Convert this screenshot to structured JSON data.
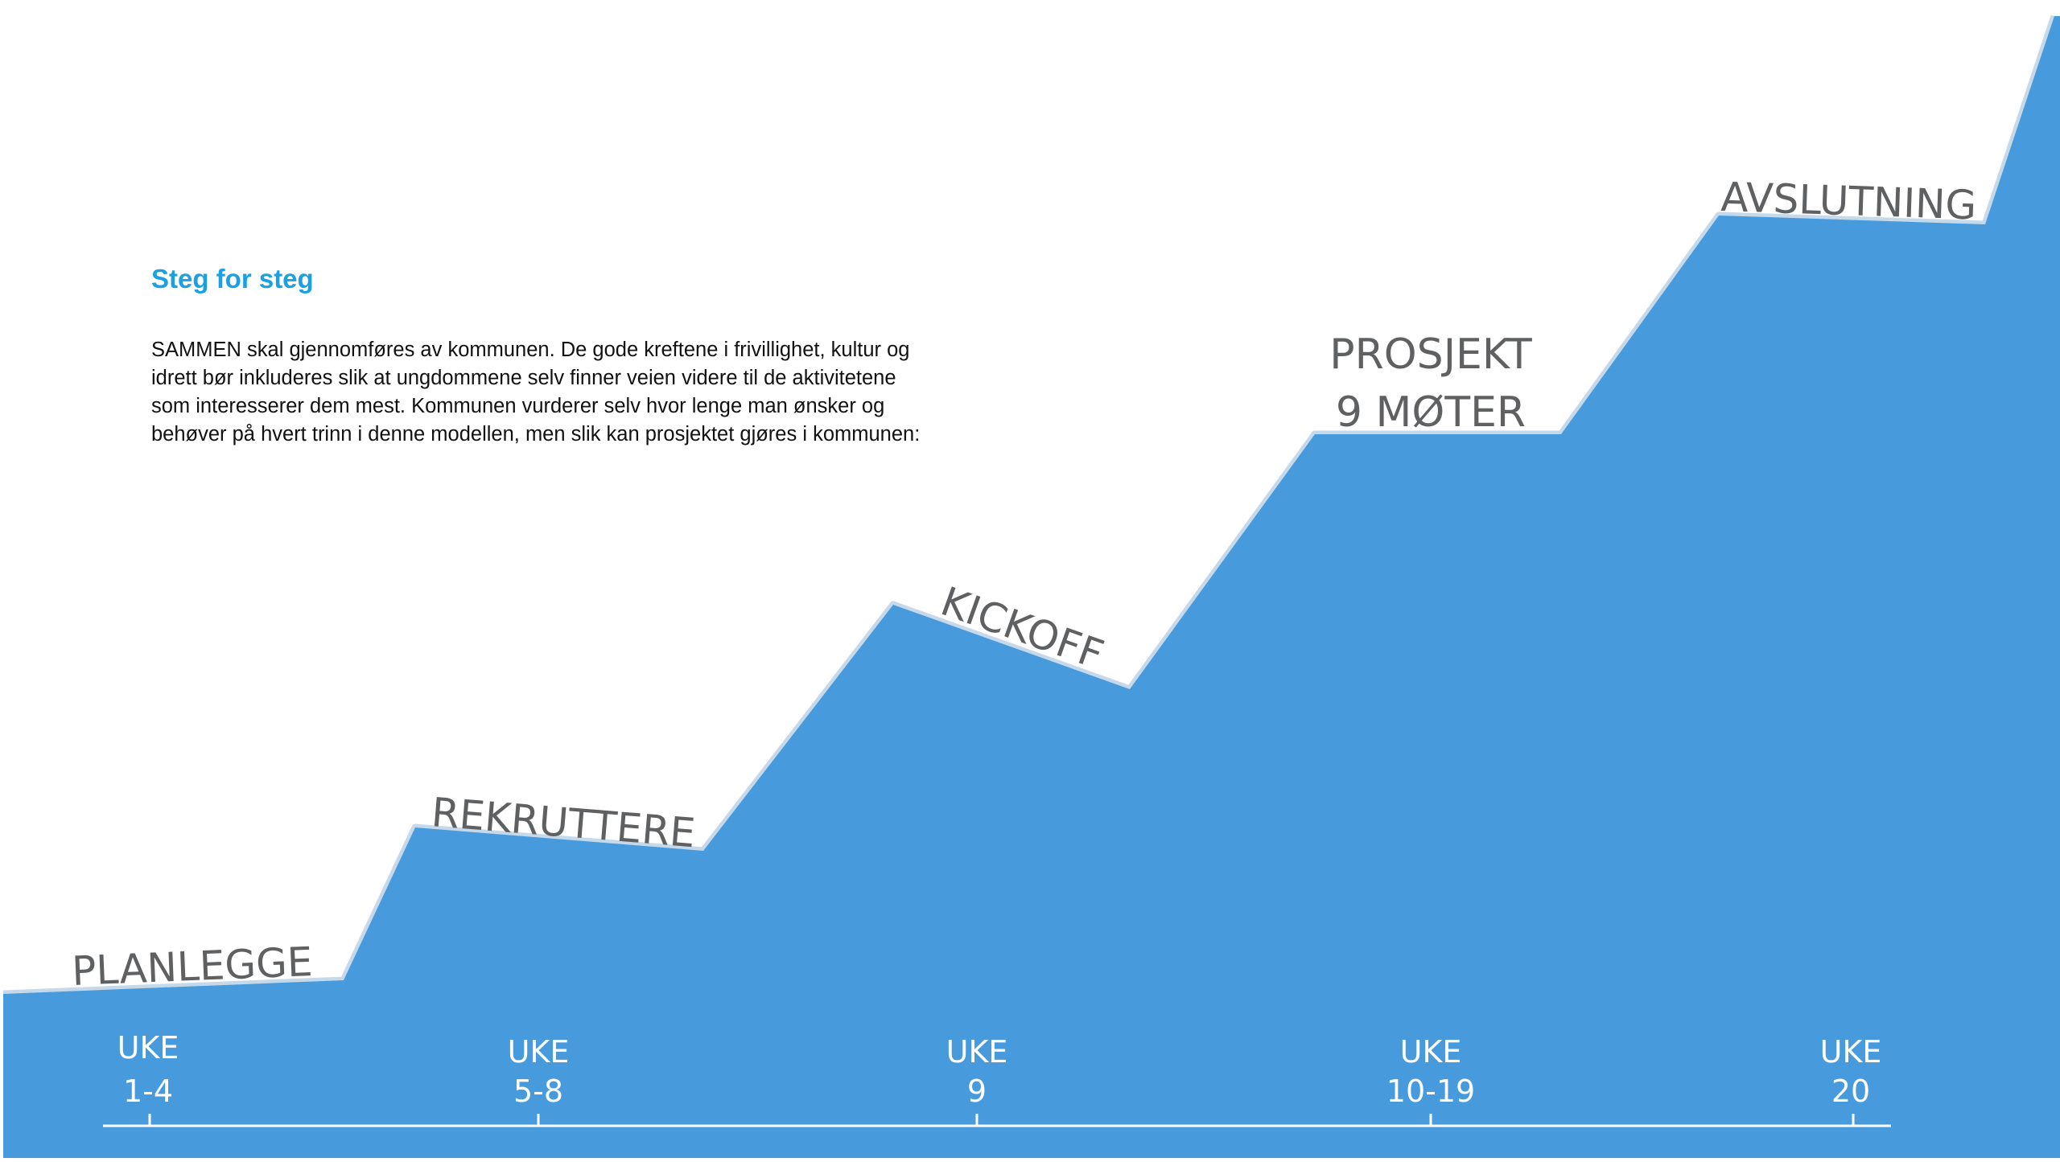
{
  "heading": "Steg for steg",
  "intro": "SAMMEN skal gjennomføres av kommunen. De gode kreftene i frivillighet, kultur og idrett bør inkluderes slik at ungdommene selv finner veien videre til de aktivitetene som interesserer dem mest. Kommunen vurderer selv hvor lenge man ønsker og behøver på hvert trinn i denne modellen, men slik kan prosjektet gjøres i kommunen:",
  "colors": {
    "area": "#479BDC",
    "area_edge": "#C6D9EA",
    "heading": "#1BA1E2",
    "stage_label": "#5F6062",
    "week_label": "#FFFFFF"
  },
  "stages": [
    {
      "label": "PLANLEGGE"
    },
    {
      "label": "REKRUTTERE"
    },
    {
      "label": "KICKOFF"
    },
    {
      "label_line1": "PROSJEKT",
      "label_line2": "9 MØTER"
    },
    {
      "label": "AVSLUTNING"
    }
  ],
  "weeks": [
    {
      "line1": "UKE",
      "line2": "1-4"
    },
    {
      "line1": "UKE",
      "line2": "5-8"
    },
    {
      "line1": "UKE",
      "line2": "9"
    },
    {
      "line1": "UKE",
      "line2": "10-19"
    },
    {
      "line1": "UKE",
      "line2": "20"
    }
  ]
}
